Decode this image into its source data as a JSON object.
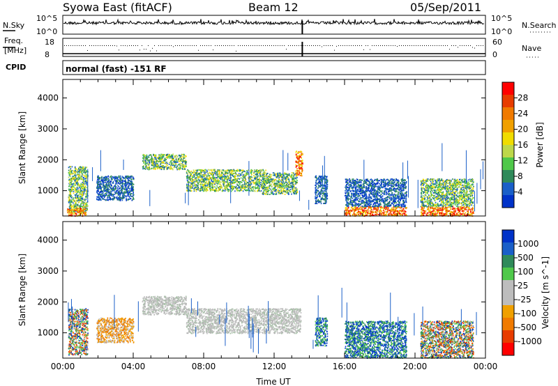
{
  "header": {
    "station": "Syowa East (fitACF)",
    "beam": "Beam 12",
    "date": "05/Sep/2011"
  },
  "strips": {
    "nsky_label": "N.Sky",
    "nsky_ticks": [
      "10^5",
      "10^0"
    ],
    "nsearch_label": "N.Search",
    "freq_label_line1": "Freq.",
    "freq_label_line2": "[MHz]",
    "freq_ticks": [
      "18",
      "8"
    ],
    "nave_label": "Nave",
    "nave_ticks": [
      "60",
      "0"
    ],
    "cpid_label": "CPID",
    "cpid_text": "normal (fast) -151 RF"
  },
  "colors": {
    "sky_line": "#000000",
    "gradient_velocity": [
      "#0032c8",
      "#1a5fc8",
      "#2f8a5a",
      "#4fc84a",
      "#bdbdbd",
      "#bdbdbd",
      "#f0a000",
      "#f07a00",
      "#e83c00",
      "#ff0000"
    ]
  },
  "chart_data": [
    {
      "type": "heatmap",
      "id": "power",
      "ylabel": "Slant Range [km]",
      "xlabel": "",
      "ylim": [
        180,
        4600
      ],
      "yticks": [
        1000,
        2000,
        3000,
        4000
      ],
      "colorbar": {
        "label": "Power [dB]",
        "ticks": [
          "28",
          "24",
          "20",
          "16",
          "12",
          "8",
          "4"
        ],
        "bands": [
          "#ff0000",
          "#e83c00",
          "#f07a00",
          "#f0a000",
          "#f0dc00",
          "#bdd84a",
          "#4fc84a",
          "#2f8a5a",
          "#1a5fc8",
          "#0032c8"
        ]
      },
      "echo_regions": [
        {
          "t0": 0.3,
          "t1": 1.4,
          "r0": 300,
          "r1": 1800,
          "level": "med"
        },
        {
          "t0": 0.2,
          "t1": 1.3,
          "r0": 200,
          "r1": 450,
          "level": "high"
        },
        {
          "t0": 1.9,
          "t1": 4.0,
          "r0": 700,
          "r1": 1500,
          "level": "low"
        },
        {
          "t0": 4.5,
          "t1": 7.0,
          "r0": 1700,
          "r1": 2200,
          "level": "med"
        },
        {
          "t0": 7.0,
          "t1": 11.5,
          "r0": 1000,
          "r1": 1700,
          "level": "med"
        },
        {
          "t0": 11.3,
          "t1": 13.3,
          "r0": 900,
          "r1": 1600,
          "level": "med"
        },
        {
          "t0": 13.2,
          "t1": 13.6,
          "r0": 1500,
          "r1": 2300,
          "level": "high"
        },
        {
          "t0": 14.3,
          "t1": 15.0,
          "r0": 600,
          "r1": 1500,
          "level": "low"
        },
        {
          "t0": 16.0,
          "t1": 19.5,
          "r0": 200,
          "r1": 500,
          "level": "high"
        },
        {
          "t0": 16.0,
          "t1": 19.5,
          "r0": 500,
          "r1": 1400,
          "level": "low"
        },
        {
          "t0": 20.3,
          "t1": 23.3,
          "r0": 200,
          "r1": 500,
          "level": "high"
        },
        {
          "t0": 20.3,
          "t1": 23.3,
          "r0": 500,
          "r1": 1400,
          "level": "med"
        }
      ]
    },
    {
      "type": "heatmap",
      "id": "velocity",
      "ylabel": "Slant Range [km]",
      "xlabel": "Time UT",
      "ylim": [
        180,
        4600
      ],
      "yticks": [
        1000,
        2000,
        3000,
        4000
      ],
      "xticks": [
        "00:00",
        "04:00",
        "08:00",
        "12:00",
        "16:00",
        "20:00",
        "00:00"
      ],
      "xtick_hours": [
        0,
        4,
        8,
        12,
        16,
        20,
        24
      ],
      "colorbar": {
        "label": "Velocity [m s^-1]",
        "ticks": [
          "1000",
          "500",
          "100",
          "25",
          "-25",
          "-100",
          "-500",
          "-1000"
        ]
      },
      "echo_regions": [
        {
          "t0": 0.3,
          "t1": 1.4,
          "r0": 300,
          "r1": 1800,
          "level": "mix"
        },
        {
          "t0": 1.9,
          "t1": 4.0,
          "r0": 700,
          "r1": 1500,
          "level": "orange"
        },
        {
          "t0": 4.5,
          "t1": 7.0,
          "r0": 1600,
          "r1": 2200,
          "level": "grey"
        },
        {
          "t0": 7.0,
          "t1": 13.5,
          "r0": 1000,
          "r1": 1800,
          "level": "grey"
        },
        {
          "t0": 14.3,
          "t1": 15.0,
          "r0": 600,
          "r1": 1500,
          "level": "blue"
        },
        {
          "t0": 16.0,
          "t1": 19.5,
          "r0": 200,
          "r1": 1400,
          "level": "blue"
        },
        {
          "t0": 20.3,
          "t1": 23.3,
          "r0": 200,
          "r1": 1400,
          "level": "mix"
        }
      ]
    }
  ]
}
